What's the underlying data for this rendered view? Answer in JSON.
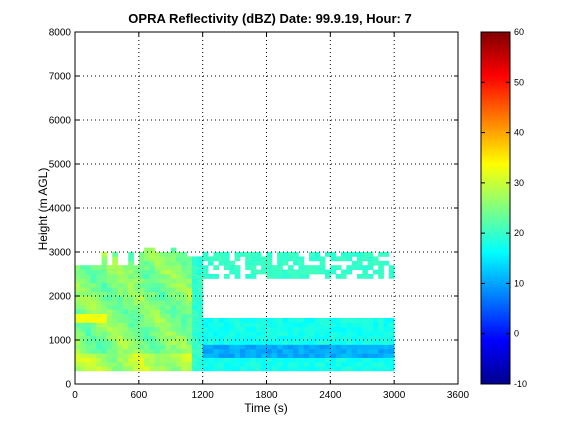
{
  "chart_data": {
    "type": "heatmap",
    "title": "OPRA Reflectivity (dBZ)  Date: 99.9.19, Hour: 7",
    "xlabel": "Time (s)",
    "ylabel": "Height (m AGL)",
    "xlim": [
      0,
      3600
    ],
    "ylim": [
      0,
      8000
    ],
    "xticks": [
      "0",
      "600",
      "1200",
      "1800",
      "2400",
      "3000",
      "3600"
    ],
    "yticks": [
      "0",
      "1000",
      "2000",
      "3000",
      "4000",
      "5000",
      "6000",
      "7000",
      "8000"
    ],
    "grid": true,
    "colorbar": {
      "colormap": "jet",
      "range": [
        -10,
        60
      ],
      "ticks": [
        "-10",
        "0",
        "10",
        "20",
        "30",
        "40",
        "50",
        "60"
      ],
      "placement": "right"
    },
    "data_extent": {
      "time_range_s": [
        0,
        3000
      ],
      "height_range_m": [
        300,
        3100
      ]
    },
    "regions": [
      {
        "time": [
          0,
          600
        ],
        "height": [
          300,
          2700
        ],
        "dbz": 26
      },
      {
        "time": [
          600,
          1050
        ],
        "height": [
          300,
          2800
        ],
        "dbz": 28
      },
      {
        "time": [
          100,
          250
        ],
        "height": [
          1350,
          1500
        ],
        "dbz": 32
      },
      {
        "time": [
          1200,
          3000
        ],
        "height": [
          300,
          1500
        ],
        "dbz": 16
      },
      {
        "time": [
          1300,
          3000
        ],
        "height": [
          550,
          850
        ],
        "dbz": 10
      },
      {
        "time": [
          1200,
          3000
        ],
        "height": [
          2400,
          3000
        ],
        "dbz": 19
      }
    ]
  }
}
